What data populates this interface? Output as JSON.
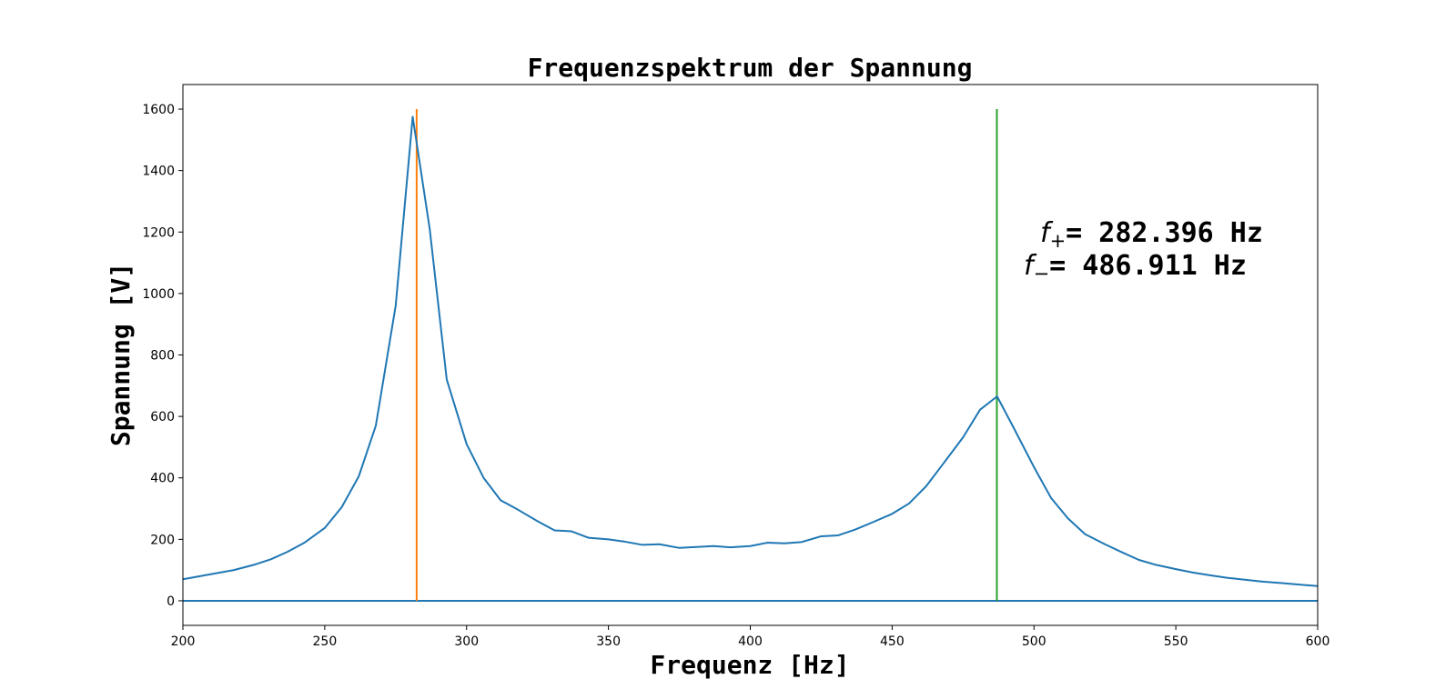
{
  "chart_data": {
    "type": "line",
    "title": "Frequenzspektrum der Spannung",
    "xlabel": "Frequenz [Hz]",
    "ylabel": "Spannung [V]",
    "xlim": [
      200,
      600
    ],
    "ylim": [
      -80,
      1680
    ],
    "xticks": [
      200,
      250,
      300,
      350,
      400,
      450,
      500,
      550,
      600
    ],
    "yticks": [
      0,
      200,
      400,
      600,
      800,
      1000,
      1200,
      1400,
      1600
    ],
    "grid": false,
    "colors": {
      "spectrum": "#1f77b4",
      "f_plus_line": "#ff7f0e",
      "f_minus_line": "#2ca02c",
      "zero_line": "#1f77b4"
    },
    "series": [
      {
        "x": [
          200,
          206,
          212,
          218,
          225,
          231,
          237,
          243,
          250,
          256,
          262,
          268,
          275,
          281,
          287,
          293,
          300,
          306,
          312,
          318,
          325,
          331,
          337,
          343,
          350,
          356,
          362,
          368,
          375,
          381,
          387,
          393,
          400,
          406,
          412,
          418,
          425,
          431,
          437,
          443,
          450,
          456,
          462,
          468,
          475,
          481,
          487,
          493,
          500,
          506,
          512,
          518,
          525,
          531,
          537,
          543,
          550,
          556,
          562,
          568,
          575,
          581,
          587,
          593,
          600
        ],
        "y": [
          70,
          80,
          90,
          100,
          117,
          135,
          160,
          190,
          237,
          305,
          405,
          570,
          960,
          1575,
          1210,
          720,
          510,
          400,
          327,
          297,
          259,
          229,
          226,
          205,
          200,
          192,
          182,
          184,
          172,
          175,
          178,
          174,
          178,
          189,
          187,
          191,
          210,
          213,
          232,
          255,
          283,
          317,
          373,
          446,
          532,
          622,
          665,
          560,
          435,
          335,
          268,
          217,
          184,
          158,
          133,
          117,
          103,
          92,
          83,
          75,
          68,
          62,
          58,
          53,
          48
        ]
      }
    ],
    "vlines": [
      {
        "x": 282.396,
        "ymin": 0,
        "ymax": 1600
      },
      {
        "x": 486.911,
        "ymin": 0,
        "ymax": 1600
      }
    ],
    "hline": {
      "y": 0
    },
    "annotations": [
      {
        "symbol": "f",
        "sub": "+",
        "text": "= 282.396 Hz"
      },
      {
        "symbol": "f",
        "sub": "−",
        "text": "= 486.911 Hz"
      }
    ]
  }
}
